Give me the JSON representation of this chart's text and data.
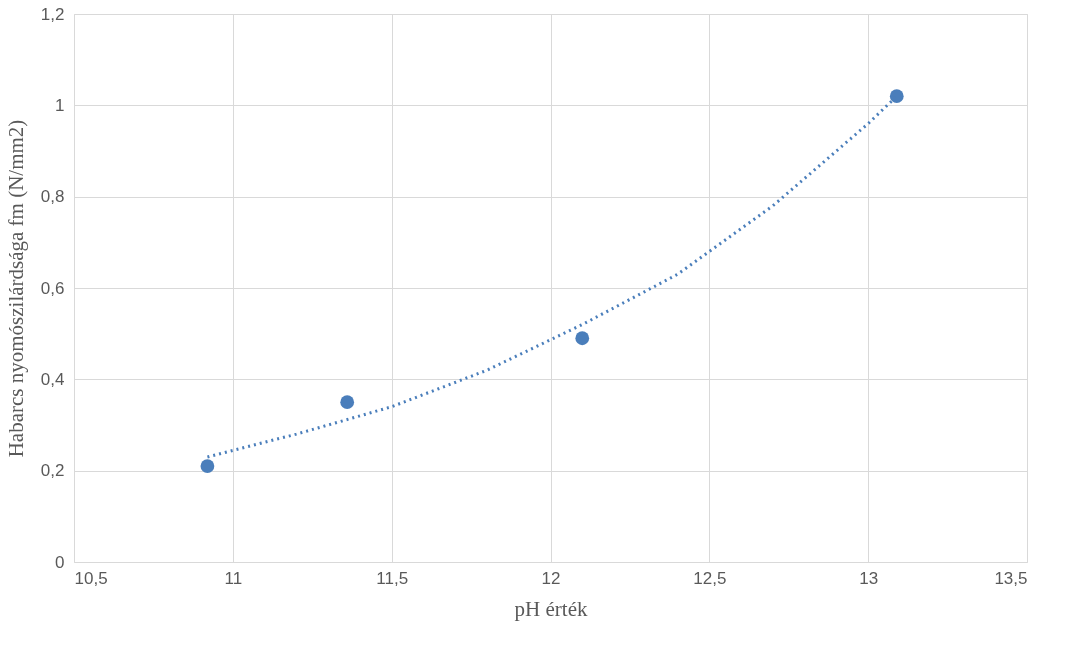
{
  "chart_data": {
    "type": "scatter",
    "xlabel": "pH érték",
    "ylabel": "Habarcs nyomószilárdsága fm (N/mm2)",
    "series": [
      {
        "color": "#4a7ebb",
        "marker": "circle",
        "x": [
          10.92,
          11.36,
          12.1,
          13.09
        ],
        "values": [
          0.21,
          0.35,
          0.49,
          1.02
        ]
      },
      {
        "type": "line",
        "color": "#4a7ebb",
        "line_style": "dotted",
        "marker": "none",
        "x": [
          10.92,
          11.2,
          11.5,
          11.8,
          12.1,
          12.4,
          12.7,
          13.0,
          13.09
        ],
        "values": [
          0.23,
          0.28,
          0.34,
          0.42,
          0.52,
          0.63,
          0.78,
          0.96,
          1.02
        ]
      }
    ],
    "xlim": [
      10.5,
      13.5
    ],
    "xticks": [
      {
        "value": 10.5,
        "label": "10,5"
      },
      11,
      {
        "value": 11.5,
        "label": "11,5"
      },
      12,
      {
        "value": 12.5,
        "label": "12,5"
      },
      13,
      {
        "value": 13.5,
        "label": "13,5"
      }
    ],
    "ylim": [
      0,
      1.2
    ],
    "yticks": [
      0,
      {
        "value": 0.2,
        "label": "0,2"
      },
      {
        "value": 0.4,
        "label": "0,4"
      },
      {
        "value": 0.6,
        "label": "0,6"
      },
      {
        "value": 0.8,
        "label": "0,8"
      },
      1,
      {
        "value": 1.2,
        "label": "1,2"
      }
    ],
    "grid": true
  }
}
